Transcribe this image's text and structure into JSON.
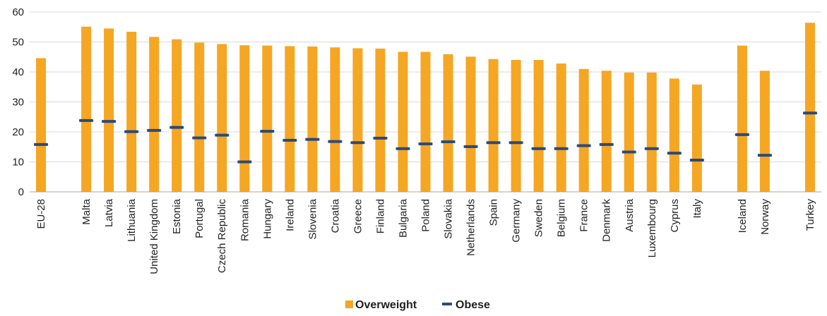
{
  "chart_data": {
    "type": "bar",
    "title": "",
    "xlabel": "",
    "ylabel": "",
    "ylim": [
      0,
      60
    ],
    "yticks": [
      0,
      10,
      20,
      30,
      40,
      50,
      60
    ],
    "grid": true,
    "legend_position": "bottom",
    "colors": {
      "Overweight": "#F5A623",
      "Obese": "#2B4A7A",
      "grid": "#d9d9d9",
      "axis": "#a6a6a6"
    },
    "categories": [
      "EU-28",
      "Malta",
      "Latvia",
      "Lithuania",
      "United Kingdom",
      "Estonia",
      "Portugal",
      "Czech Republic",
      "Romania",
      "Hungary",
      "Ireland",
      "Slovenia",
      "Croatia",
      "Greece",
      "Finland",
      "Bulgaria",
      "Poland",
      "Slovakia",
      "Netherlands",
      "Spain",
      "Germany",
      "Sweden",
      "Belgium",
      "France",
      "Denmark",
      "Austria",
      "Luxembourg",
      "Cyprus",
      "Italy",
      "Iceland",
      "Norway",
      "Turkey"
    ],
    "group_gaps_after": [
      "EU-28",
      "Italy",
      "Norway"
    ],
    "series": [
      {
        "name": "Overweight",
        "kind": "bar",
        "values": [
          44.6,
          55.1,
          54.5,
          53.4,
          51.7,
          50.9,
          49.8,
          49.3,
          48.9,
          48.8,
          48.6,
          48.5,
          48.2,
          47.9,
          47.8,
          46.7,
          46.7,
          45.9,
          45.1,
          44.3,
          44.0,
          44.0,
          42.8,
          41.0,
          40.4,
          39.8,
          39.8,
          37.8,
          35.8,
          48.8,
          40.4,
          56.4
        ]
      },
      {
        "name": "Obese",
        "kind": "marker",
        "values": [
          15.8,
          23.8,
          23.5,
          20.1,
          20.5,
          21.5,
          18.0,
          18.9,
          10.0,
          20.2,
          17.2,
          17.5,
          16.8,
          16.4,
          17.9,
          14.4,
          16.0,
          16.7,
          15.1,
          16.4,
          16.4,
          14.4,
          14.4,
          15.4,
          15.8,
          13.3,
          14.4,
          12.9,
          10.6,
          19.1,
          12.2,
          26.3
        ]
      }
    ]
  }
}
